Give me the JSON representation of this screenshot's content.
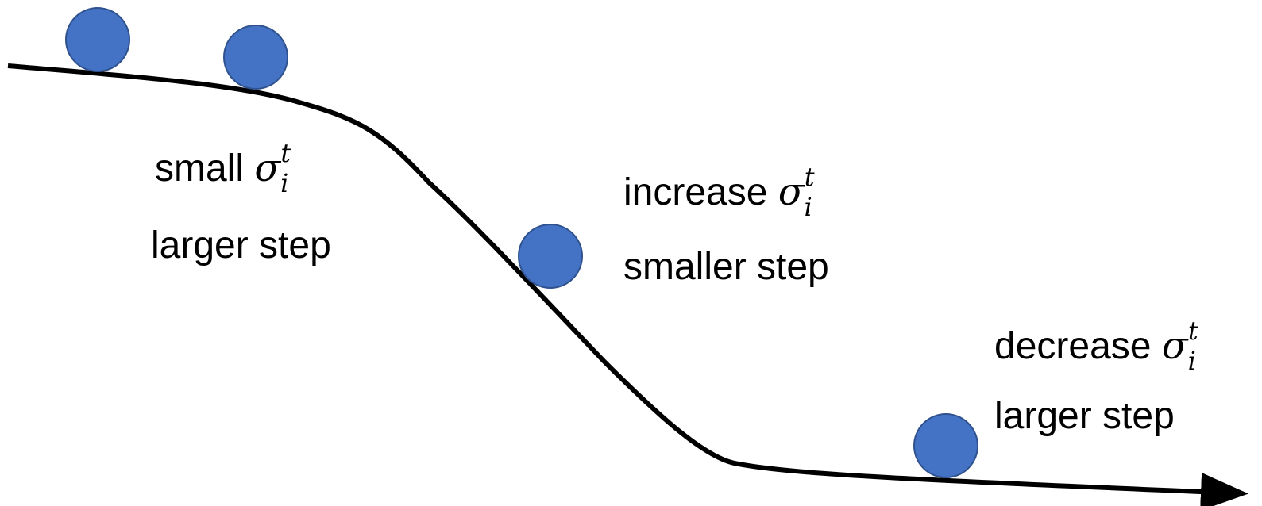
{
  "labels": [
    {
      "word": "small",
      "symbol": "σ",
      "sub": "i",
      "sup": "t",
      "note": "larger step"
    },
    {
      "word": "increase",
      "symbol": "σ",
      "sub": "i",
      "sup": "t",
      "note": "smaller step"
    },
    {
      "word": "decrease",
      "symbol": "σ",
      "sub": "i",
      "sup": "t",
      "note": "larger step"
    }
  ]
}
